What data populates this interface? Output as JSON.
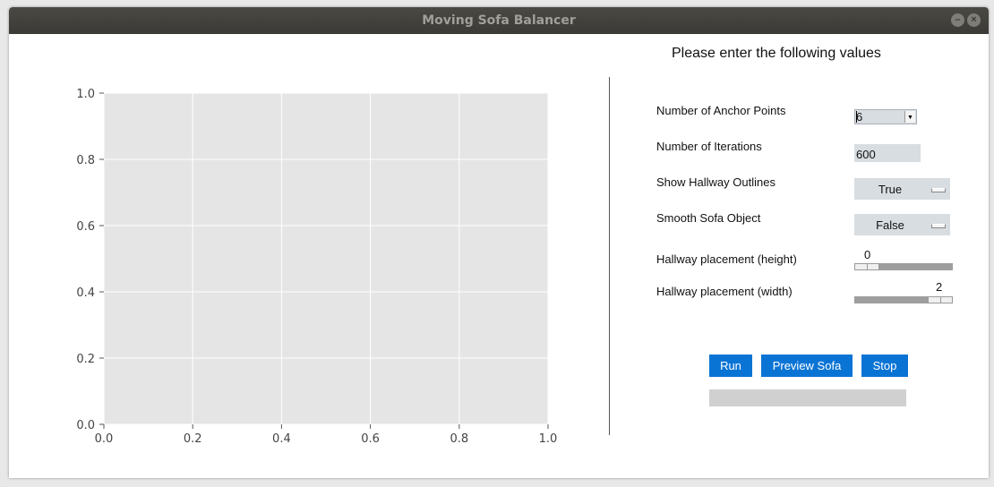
{
  "window": {
    "title": "Moving Sofa Balancer"
  },
  "plot": {
    "x_ticks": [
      "0.0",
      "0.2",
      "0.4",
      "0.6",
      "0.8",
      "1.0"
    ],
    "y_ticks": [
      "0.0",
      "0.2",
      "0.4",
      "0.6",
      "0.8",
      "1.0"
    ],
    "colors": {
      "background": "#e5e5e5",
      "grid": "#ffffff"
    }
  },
  "chart_data": {
    "type": "line",
    "series": [],
    "xlim": [
      0.0,
      1.0
    ],
    "ylim": [
      0.0,
      1.0
    ],
    "grid": true
  },
  "form": {
    "heading": "Please enter the following values",
    "anchor_points": {
      "label": "Number of Anchor Points",
      "value": "6"
    },
    "iterations": {
      "label": "Number of Iterations",
      "value": "600"
    },
    "hallway_outlines": {
      "label": "Show Hallway Outlines",
      "value": "True"
    },
    "smooth_sofa": {
      "label": "Smooth Sofa Object",
      "value": "False"
    },
    "hallway_height": {
      "label": "Hallway placement (height)",
      "value": "0",
      "level": 0.0
    },
    "hallway_width": {
      "label": "Hallway placement (width)",
      "value": "2",
      "level": 1.0
    }
  },
  "buttons": {
    "run": "Run",
    "preview": "Preview Sofa",
    "stop": "Stop"
  },
  "progress": {
    "fraction": 0.0
  },
  "accent_color": "#0a74d5"
}
